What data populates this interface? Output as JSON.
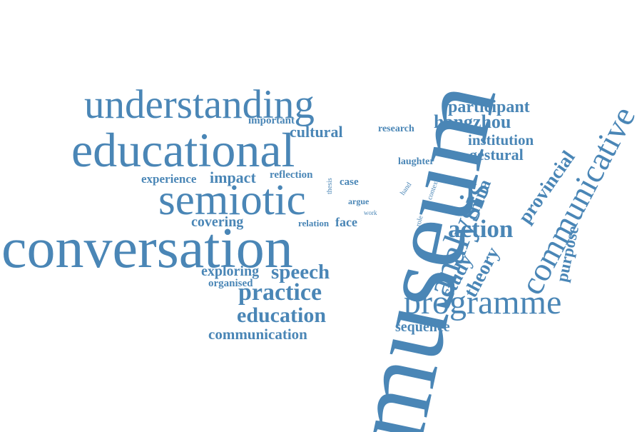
{
  "theme": {
    "word_color": "#4a86b6",
    "background": "#ffffff"
  },
  "words": {
    "museum": "museum",
    "conversation": "conversation",
    "educational": "educational",
    "understanding": "understanding",
    "semiotic": "semiotic",
    "programme": "programme",
    "communicative": "communicative",
    "analysis": "analysis",
    "practice": "practice",
    "education": "education",
    "speech": "speech",
    "communication": "communication",
    "action": "action",
    "hangzhou": "hangzhou",
    "participant": "participant",
    "provincial": "provincial",
    "institution": "institution",
    "gestural": "gestural",
    "china": "china",
    "theory": "theory",
    "study": "study",
    "purpose": "purpose",
    "sequence": "sequence",
    "exploring": "exploring",
    "organised": "organised",
    "covering": "covering",
    "experience": "experience",
    "impact": "impact",
    "reflection": "reflection",
    "cultural": "cultural",
    "important": "important",
    "research": "research",
    "laughter": "laughter",
    "case": "case",
    "argue": "argue",
    "face": "face",
    "relation": "relation",
    "thesis": "thesis",
    "work": "work",
    "hand": "hand",
    "context": "context",
    "role": "role"
  }
}
